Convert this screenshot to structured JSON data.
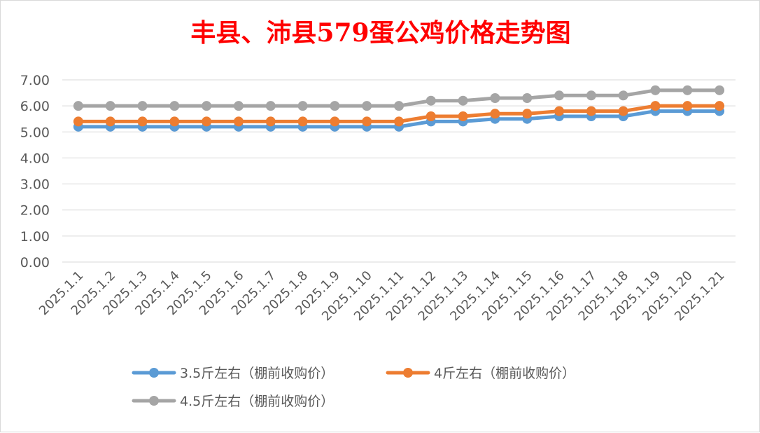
{
  "chart_data": {
    "type": "line",
    "title": "丰县、沛县579蛋公鸡价格走势图",
    "xlabel": "",
    "ylabel": "",
    "ylim": [
      0,
      7
    ],
    "y_tick_step": 1,
    "y_tick_labels": [
      "0.00",
      "1.00",
      "2.00",
      "3.00",
      "4.00",
      "5.00",
      "6.00",
      "7.00"
    ],
    "grid": true,
    "legend_position": "bottom",
    "categories": [
      "2025.1.1",
      "2025.1.2",
      "2025.1.3",
      "2025.1.4",
      "2025.1.5",
      "2025.1.6",
      "2025.1.7",
      "2025.1.8",
      "2025.1.9",
      "2025.1.10",
      "2025.1.11",
      "2025.1.12",
      "2025.1.13",
      "2025.1.14",
      "2025.1.15",
      "2025.1.16",
      "2025.1.17",
      "2025.1.18",
      "2025.1.19",
      "2025.1.20",
      "2025.1.21"
    ],
    "series": [
      {
        "name": "3.5斤左右（棚前收购价）",
        "color": "#5b9bd5",
        "values": [
          5.2,
          5.2,
          5.2,
          5.2,
          5.2,
          5.2,
          5.2,
          5.2,
          5.2,
          5.2,
          5.2,
          5.4,
          5.4,
          5.5,
          5.5,
          5.6,
          5.6,
          5.6,
          5.8,
          5.8,
          5.8
        ]
      },
      {
        "name": "4斤左右（棚前收购价）",
        "color": "#ed7d31",
        "values": [
          5.4,
          5.4,
          5.4,
          5.4,
          5.4,
          5.4,
          5.4,
          5.4,
          5.4,
          5.4,
          5.4,
          5.6,
          5.6,
          5.7,
          5.7,
          5.8,
          5.8,
          5.8,
          6.0,
          6.0,
          6.0
        ]
      },
      {
        "name": "4.5斤左右（棚前收购价）",
        "color": "#a5a5a5",
        "values": [
          6.0,
          6.0,
          6.0,
          6.0,
          6.0,
          6.0,
          6.0,
          6.0,
          6.0,
          6.0,
          6.0,
          6.2,
          6.2,
          6.3,
          6.3,
          6.4,
          6.4,
          6.4,
          6.6,
          6.6,
          6.6
        ]
      }
    ]
  }
}
